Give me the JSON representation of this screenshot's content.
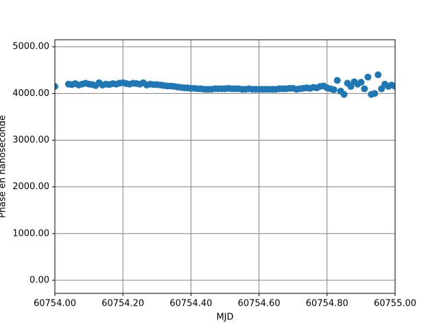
{
  "chart_data": {
    "type": "scatter",
    "xlabel": "MJD",
    "ylabel": "Phase en nanoseconde",
    "color": "#1f77b4",
    "grid": true,
    "xlim": [
      60754.0,
      60755.0
    ],
    "xticks": [
      {
        "value": 60754.0,
        "label": "60754.00"
      },
      {
        "value": 60754.2,
        "label": "60754.20"
      },
      {
        "value": 60754.4,
        "label": "60754.40"
      },
      {
        "value": 60754.6,
        "label": "60754.60"
      },
      {
        "value": 60754.8,
        "label": "60754.80"
      },
      {
        "value": 60755.0,
        "label": "60755.00"
      }
    ],
    "ylim": [
      -280,
      5150
    ],
    "yticks": [
      {
        "value": 0,
        "label": "0.00"
      },
      {
        "value": 1000,
        "label": "1000.00"
      },
      {
        "value": 2000,
        "label": "2000.00"
      },
      {
        "value": 3000,
        "label": "3000.00"
      },
      {
        "value": 4000,
        "label": "4000.00"
      },
      {
        "value": 5000,
        "label": "5000.00"
      }
    ],
    "x": [
      60754.0,
      60754.04,
      60754.05,
      60754.06,
      60754.07,
      60754.08,
      60754.09,
      60754.1,
      60754.11,
      60754.12,
      60754.13,
      60754.14,
      60754.15,
      60754.16,
      60754.17,
      60754.18,
      60754.19,
      60754.2,
      60754.21,
      60754.22,
      60754.23,
      60754.24,
      60754.25,
      60754.26,
      60754.27,
      60754.28,
      60754.29,
      60754.3,
      60754.31,
      60754.32,
      60754.33,
      60754.34,
      60754.35,
      60754.36,
      60754.37,
      60754.38,
      60754.39,
      60754.4,
      60754.41,
      60754.42,
      60754.43,
      60754.44,
      60754.45,
      60754.46,
      60754.47,
      60754.48,
      60754.49,
      60754.5,
      60754.51,
      60754.52,
      60754.53,
      60754.54,
      60754.55,
      60754.56,
      60754.57,
      60754.58,
      60754.59,
      60754.6,
      60754.61,
      60754.62,
      60754.63,
      60754.64,
      60754.65,
      60754.66,
      60754.67,
      60754.68,
      60754.69,
      60754.7,
      60754.71,
      60754.72,
      60754.73,
      60754.74,
      60754.75,
      60754.76,
      60754.77,
      60754.78,
      60754.79,
      60754.8,
      60754.81,
      60754.82,
      60754.83,
      60754.84,
      60754.85,
      60754.86,
      60754.87,
      60754.88,
      60754.89,
      60754.9,
      60754.91,
      60754.92,
      60754.93,
      60754.94,
      60754.95,
      60754.96,
      60754.97,
      60754.98,
      60754.99,
      60755.0
    ],
    "values": [
      4150,
      4200,
      4190,
      4210,
      4180,
      4200,
      4220,
      4200,
      4190,
      4170,
      4230,
      4180,
      4200,
      4190,
      4210,
      4200,
      4220,
      4230,
      4210,
      4200,
      4220,
      4210,
      4200,
      4230,
      4180,
      4200,
      4190,
      4190,
      4180,
      4170,
      4160,
      4160,
      4150,
      4140,
      4130,
      4120,
      4120,
      4110,
      4110,
      4100,
      4100,
      4090,
      4090,
      4090,
      4100,
      4100,
      4100,
      4100,
      4110,
      4100,
      4100,
      4100,
      4090,
      4090,
      4100,
      4090,
      4090,
      4090,
      4090,
      4090,
      4090,
      4090,
      4090,
      4100,
      4100,
      4100,
      4110,
      4110,
      4090,
      4100,
      4110,
      4120,
      4110,
      4130,
      4120,
      4150,
      4160,
      4120,
      4100,
      4080,
      4280,
      4050,
      3980,
      4220,
      4150,
      4250,
      4200,
      4240,
      4100,
      4350,
      3980,
      4000,
      4400,
      4100,
      4200,
      4150,
      4180,
      4150
    ]
  }
}
